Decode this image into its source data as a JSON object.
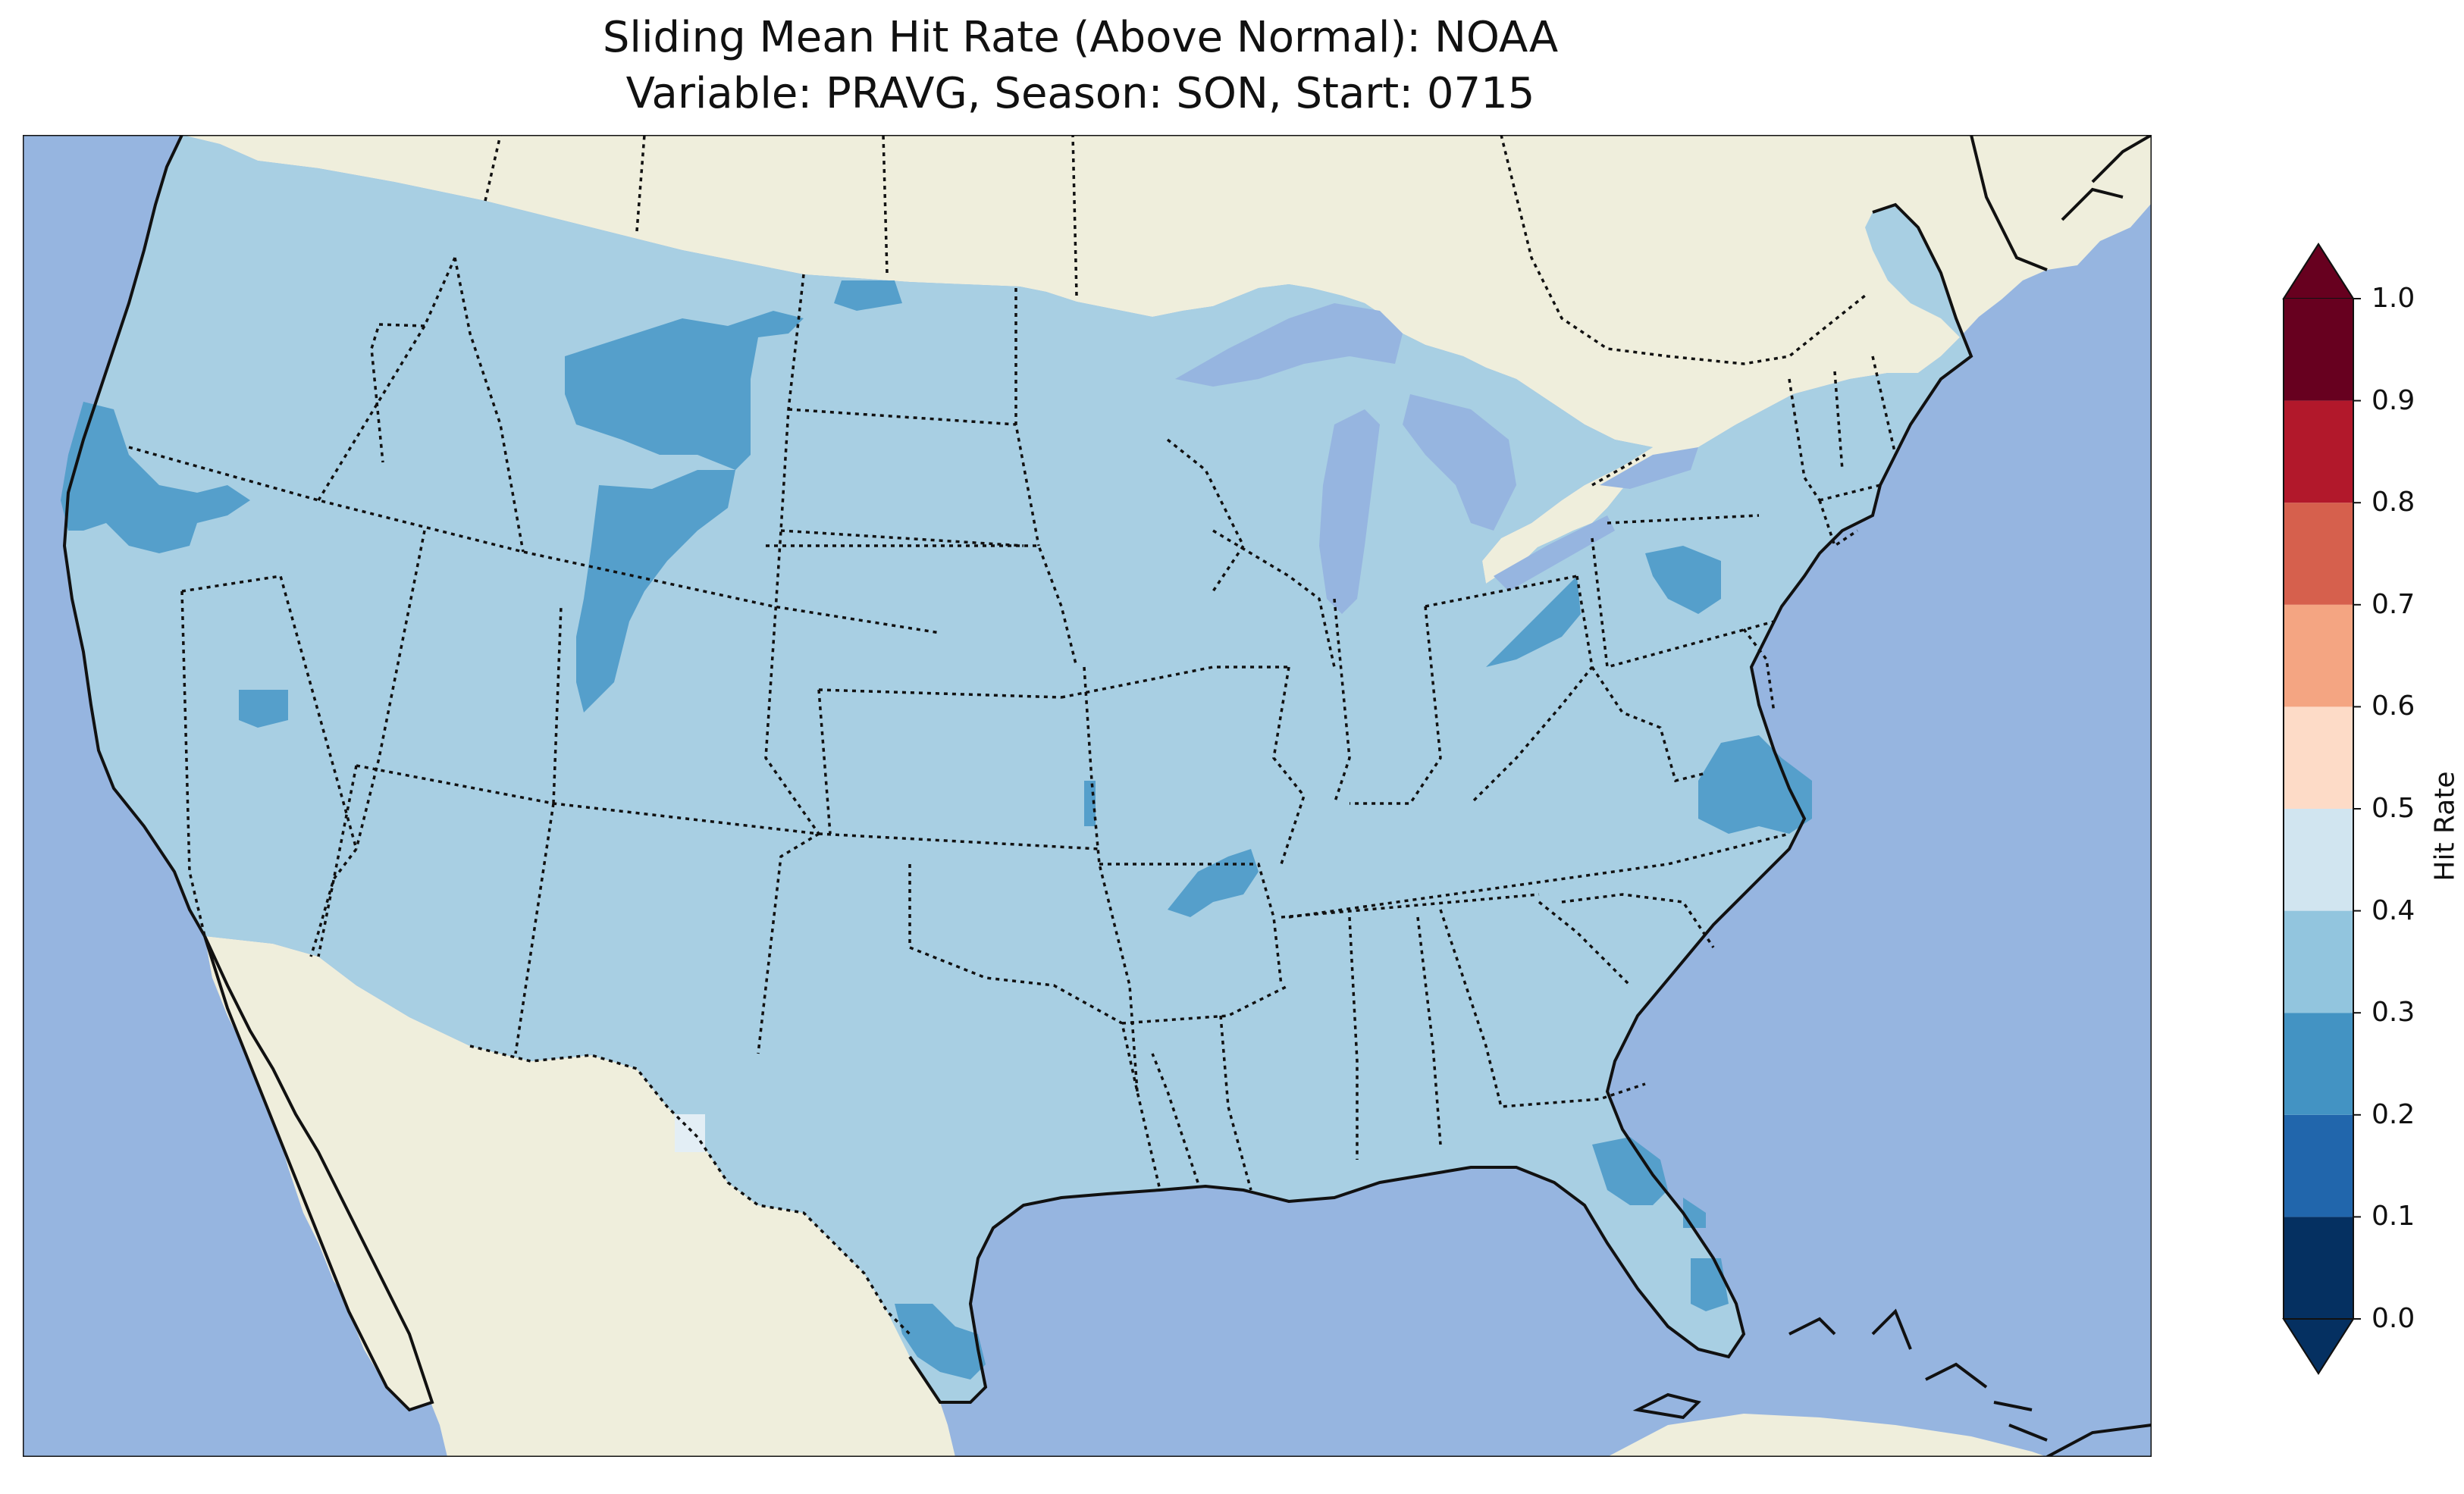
{
  "title": {
    "line1": "Sliding Mean Hit Rate (Above Normal): NOAA",
    "line2": "Variable: PRAVG, Season: SON, Start: 0715"
  },
  "colors": {
    "ocean": "#96b5e0",
    "land": "#efeedc",
    "us_base": "#a8cfe3",
    "us_mid": "#559fcb",
    "light": "#e3eef5",
    "border": "#111111"
  },
  "colorbar": {
    "label": "Hit Rate",
    "ticks": [
      "0.0",
      "0.1",
      "0.2",
      "0.3",
      "0.4",
      "0.5",
      "0.6",
      "0.7",
      "0.8",
      "0.9",
      "1.0"
    ],
    "bins": [
      {
        "range": "0.0-0.1",
        "color": "#053061"
      },
      {
        "range": "0.1-0.2",
        "color": "#2166ac"
      },
      {
        "range": "0.2-0.3",
        "color": "#4393c3"
      },
      {
        "range": "0.3-0.4",
        "color": "#92c5de"
      },
      {
        "range": "0.4-0.5",
        "color": "#d1e5f0"
      },
      {
        "range": "0.5-0.6",
        "color": "#fddbc7"
      },
      {
        "range": "0.6-0.7",
        "color": "#f4a582"
      },
      {
        "range": "0.7-0.8",
        "color": "#d6604d"
      },
      {
        "range": "0.8-0.9",
        "color": "#b2182b"
      },
      {
        "range": "0.9-1.0",
        "color": "#67001f"
      }
    ],
    "under_color": "#053061",
    "over_color": "#67001f"
  },
  "map": {
    "dominant_range": "0.3-0.4",
    "regions_0.2_0.3": [
      "Northern California / Southern Oregon coast",
      "Western Montana / Northern Wyoming",
      "Western Wyoming / Eastern Idaho",
      "Central Nevada patch",
      "Northern Ohio",
      "Central Pennsylvania",
      "Northeastern North Carolina / Southern Virginia",
      "Northern Arkansas",
      "Northeastern Montana / Northwestern North Dakota",
      "Western Florida",
      "Southern Texas near Rio Grande",
      "Southeastern Kansas"
    ],
    "regions_0.4_0.5": [
      "Western Texas patch"
    ]
  }
}
